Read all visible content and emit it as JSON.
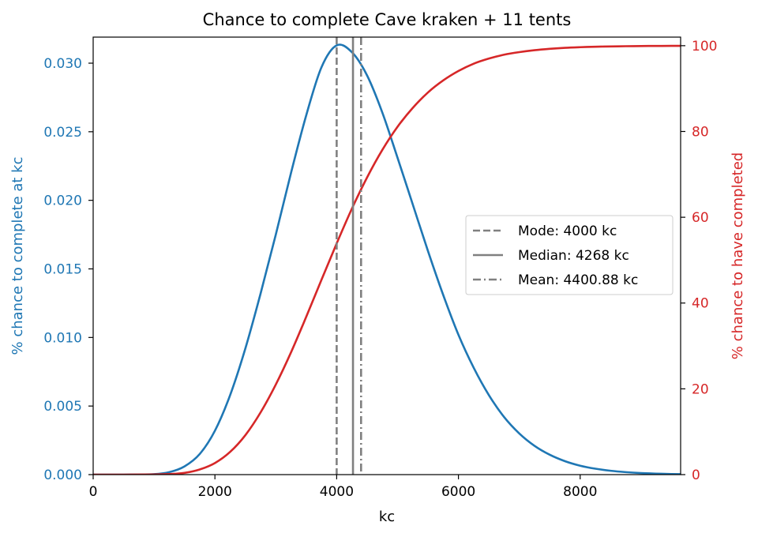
{
  "chart_data": {
    "type": "line",
    "title": "Chance to complete Cave kraken + 11 tents",
    "xlabel": "kc",
    "ylabel_left": "% chance to complete at kc",
    "ylabel_right": "% chance to have completed",
    "xlim": [
      0,
      9650
    ],
    "ylim_left": [
      0,
      0.0319
    ],
    "ylim_right": [
      0,
      102
    ],
    "x_ticks": [
      0,
      2000,
      4000,
      6000,
      8000
    ],
    "x_tick_labels": [
      "0",
      "2000",
      "4000",
      "6000",
      "8000"
    ],
    "y_left_ticks": [
      0,
      0.005,
      0.01,
      0.015,
      0.02,
      0.025,
      0.03
    ],
    "y_left_tick_labels": [
      "0.000",
      "0.005",
      "0.010",
      "0.015",
      "0.020",
      "0.025",
      "0.030"
    ],
    "y_right_ticks": [
      0,
      20,
      40,
      60,
      80,
      100
    ],
    "y_right_tick_labels": [
      "0",
      "20",
      "40",
      "60",
      "80",
      "100"
    ],
    "grid": false,
    "legend_position": "center-right",
    "colors": {
      "pdf": "#1f77b4",
      "cdf": "#d62728",
      "stat_lines": "#808080"
    },
    "series": [
      {
        "axis": "left",
        "color": "#1f77b4",
        "x": [
          0,
          500,
          1000,
          1250,
          1500,
          1750,
          2000,
          2250,
          2500,
          2750,
          3000,
          3250,
          3500,
          3750,
          4000,
          4250,
          4500,
          4750,
          5000,
          5250,
          5500,
          5750,
          6000,
          6250,
          6500,
          6750,
          7000,
          7250,
          7500,
          7750,
          8000,
          8250,
          8500,
          8750,
          9000,
          9250,
          9500,
          9650
        ],
        "y": [
          0,
          2e-07,
          3.6e-05,
          0.00018,
          0.0006,
          0.0015,
          0.0032,
          0.0058,
          0.0092,
          0.0132,
          0.0175,
          0.022,
          0.0262,
          0.0297,
          0.0313,
          0.0308,
          0.0291,
          0.0264,
          0.0231,
          0.0197,
          0.0163,
          0.0131,
          0.0102,
          0.0078,
          0.0058,
          0.0042,
          0.003,
          0.0021,
          0.00145,
          0.00098,
          0.00065,
          0.00043,
          0.00028,
          0.00018,
          0.00011,
          7e-05,
          4e-05,
          3e-05
        ]
      },
      {
        "axis": "right",
        "color": "#d62728",
        "x": [
          0,
          500,
          1000,
          1250,
          1500,
          1750,
          2000,
          2250,
          2500,
          2750,
          3000,
          3250,
          3500,
          3750,
          4000,
          4250,
          4500,
          4750,
          5000,
          5250,
          5500,
          5750,
          6000,
          6250,
          6500,
          6750,
          7000,
          7250,
          7500,
          7750,
          8000,
          8250,
          8500,
          8750,
          9000,
          9250,
          9500,
          9650
        ],
        "y": [
          0,
          0.0001,
          0.03,
          0.12,
          0.4,
          1.2,
          2.7,
          5.3,
          9.2,
          14.5,
          21.0,
          28.5,
          36.8,
          45.4,
          53.9,
          62.0,
          69.3,
          75.7,
          81.1,
          85.5,
          89.1,
          91.9,
          94.1,
          95.8,
          97.0,
          97.9,
          98.5,
          98.95,
          99.27,
          99.5,
          99.65,
          99.76,
          99.83,
          99.88,
          99.92,
          99.94,
          99.96,
          99.97
        ]
      }
    ],
    "vlines": [
      {
        "label": "Mode: 4000 kc",
        "x": 4000,
        "style": "dashed"
      },
      {
        "label": "Median: 4268 kc",
        "x": 4268,
        "style": "solid"
      },
      {
        "label": "Mean: 4400.88 kc",
        "x": 4400.88,
        "style": "dashdot"
      }
    ]
  }
}
